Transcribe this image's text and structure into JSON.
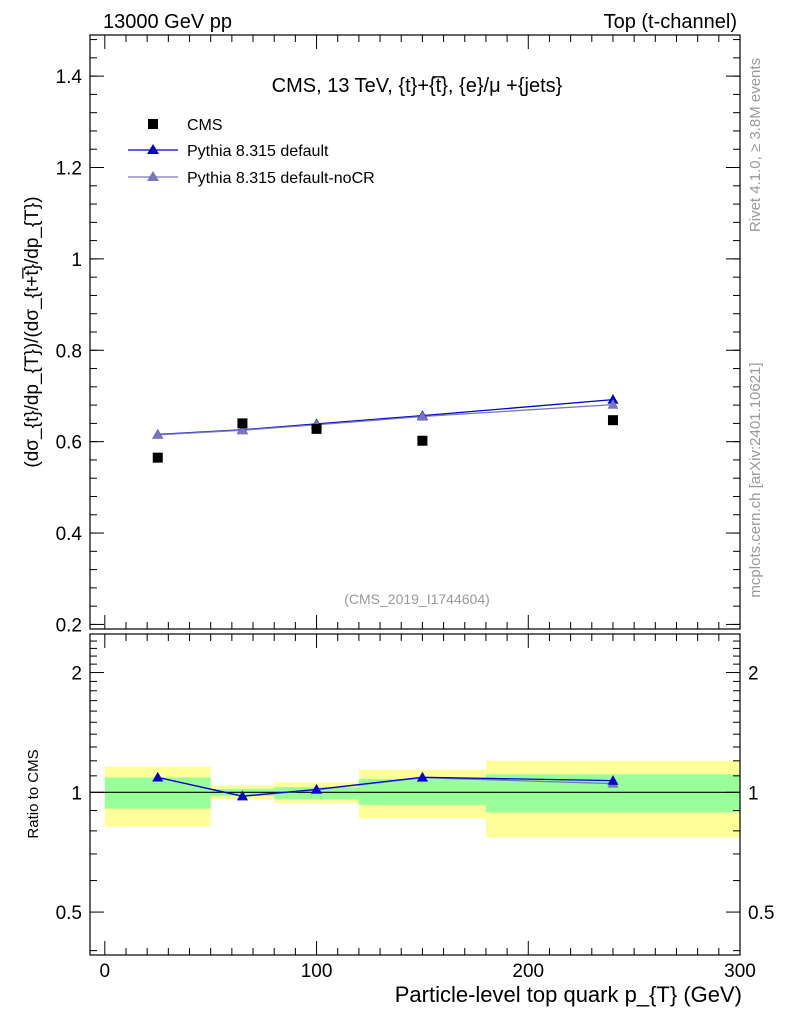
{
  "header": {
    "left": "13000 GeV pp",
    "right": "Top (t-channel)"
  },
  "side": {
    "rivet": "Rivet 4.1.0, ≥ 3.8M events",
    "mcplots": "mcplots.cern.ch [arXiv:2401.10621]"
  },
  "chart_data": [
    {
      "panel": "main",
      "type": "scatter",
      "title": "CMS, 13 TeV, {t}+{t̅}, {e}/μ +{jets}",
      "watermark": "(CMS_2019_I1744604)",
      "ylabel": "(dσ_{t}/dp_{T})/(dσ_{t+t̅}/dp_{T})",
      "xlabel": "Particle-level top quark p_{T} (GeV)",
      "xlim": [
        -7,
        300
      ],
      "ylim": [
        0.19,
        1.49
      ],
      "yticks": [
        "0.2",
        "0.4",
        "0.6",
        "0.8",
        "1",
        "1.2",
        "1.4"
      ],
      "x": [
        25,
        65,
        100,
        150,
        240
      ],
      "series": [
        {
          "name": "CMS",
          "marker": "square",
          "color": "#000000",
          "values": [
            0.565,
            0.64,
            0.628,
            0.602,
            0.647
          ]
        },
        {
          "name": "Pythia 8.315 default",
          "marker": "triangle",
          "color": "#0000cc",
          "values": [
            0.616,
            0.626,
            0.639,
            0.657,
            0.692
          ]
        },
        {
          "name": "Pythia 8.315 default-noCR",
          "marker": "triangle",
          "color": "#7777bb",
          "values": [
            0.615,
            0.625,
            0.637,
            0.655,
            0.681
          ]
        }
      ]
    },
    {
      "panel": "ratio",
      "type": "line",
      "ylabel": "Ratio to CMS",
      "scale": "log",
      "ylim": [
        0.39,
        2.5
      ],
      "yticks": [
        "0.5",
        "1",
        "2"
      ],
      "xticks": [
        "0",
        "100",
        "200",
        "300"
      ],
      "x": [
        25,
        65,
        100,
        150,
        240
      ],
      "uncertainty_bins": [
        {
          "lo": 0,
          "hi": 50,
          "inner": [
            0.91,
            1.09
          ],
          "outer": [
            0.82,
            1.16
          ]
        },
        {
          "lo": 50,
          "hi": 80,
          "inner": [
            0.98,
            1.02
          ],
          "outer": [
            0.96,
            1.04
          ]
        },
        {
          "lo": 80,
          "hi": 120,
          "inner": [
            0.96,
            1.03
          ],
          "outer": [
            0.94,
            1.06
          ]
        },
        {
          "lo": 120,
          "hi": 180,
          "inner": [
            0.93,
            1.08
          ],
          "outer": [
            0.86,
            1.14
          ]
        },
        {
          "lo": 180,
          "hi": 300,
          "inner": [
            0.89,
            1.11
          ],
          "outer": [
            0.77,
            1.2
          ]
        }
      ],
      "series": [
        {
          "name": "Pythia 8.315 default",
          "color": "#0000cc",
          "values": [
            1.09,
            0.978,
            1.017,
            1.091,
            1.07
          ]
        },
        {
          "name": "Pythia 8.315 default-noCR",
          "color": "#7777bb",
          "values": [
            1.09,
            0.977,
            1.015,
            1.088,
            1.052
          ]
        }
      ]
    }
  ]
}
